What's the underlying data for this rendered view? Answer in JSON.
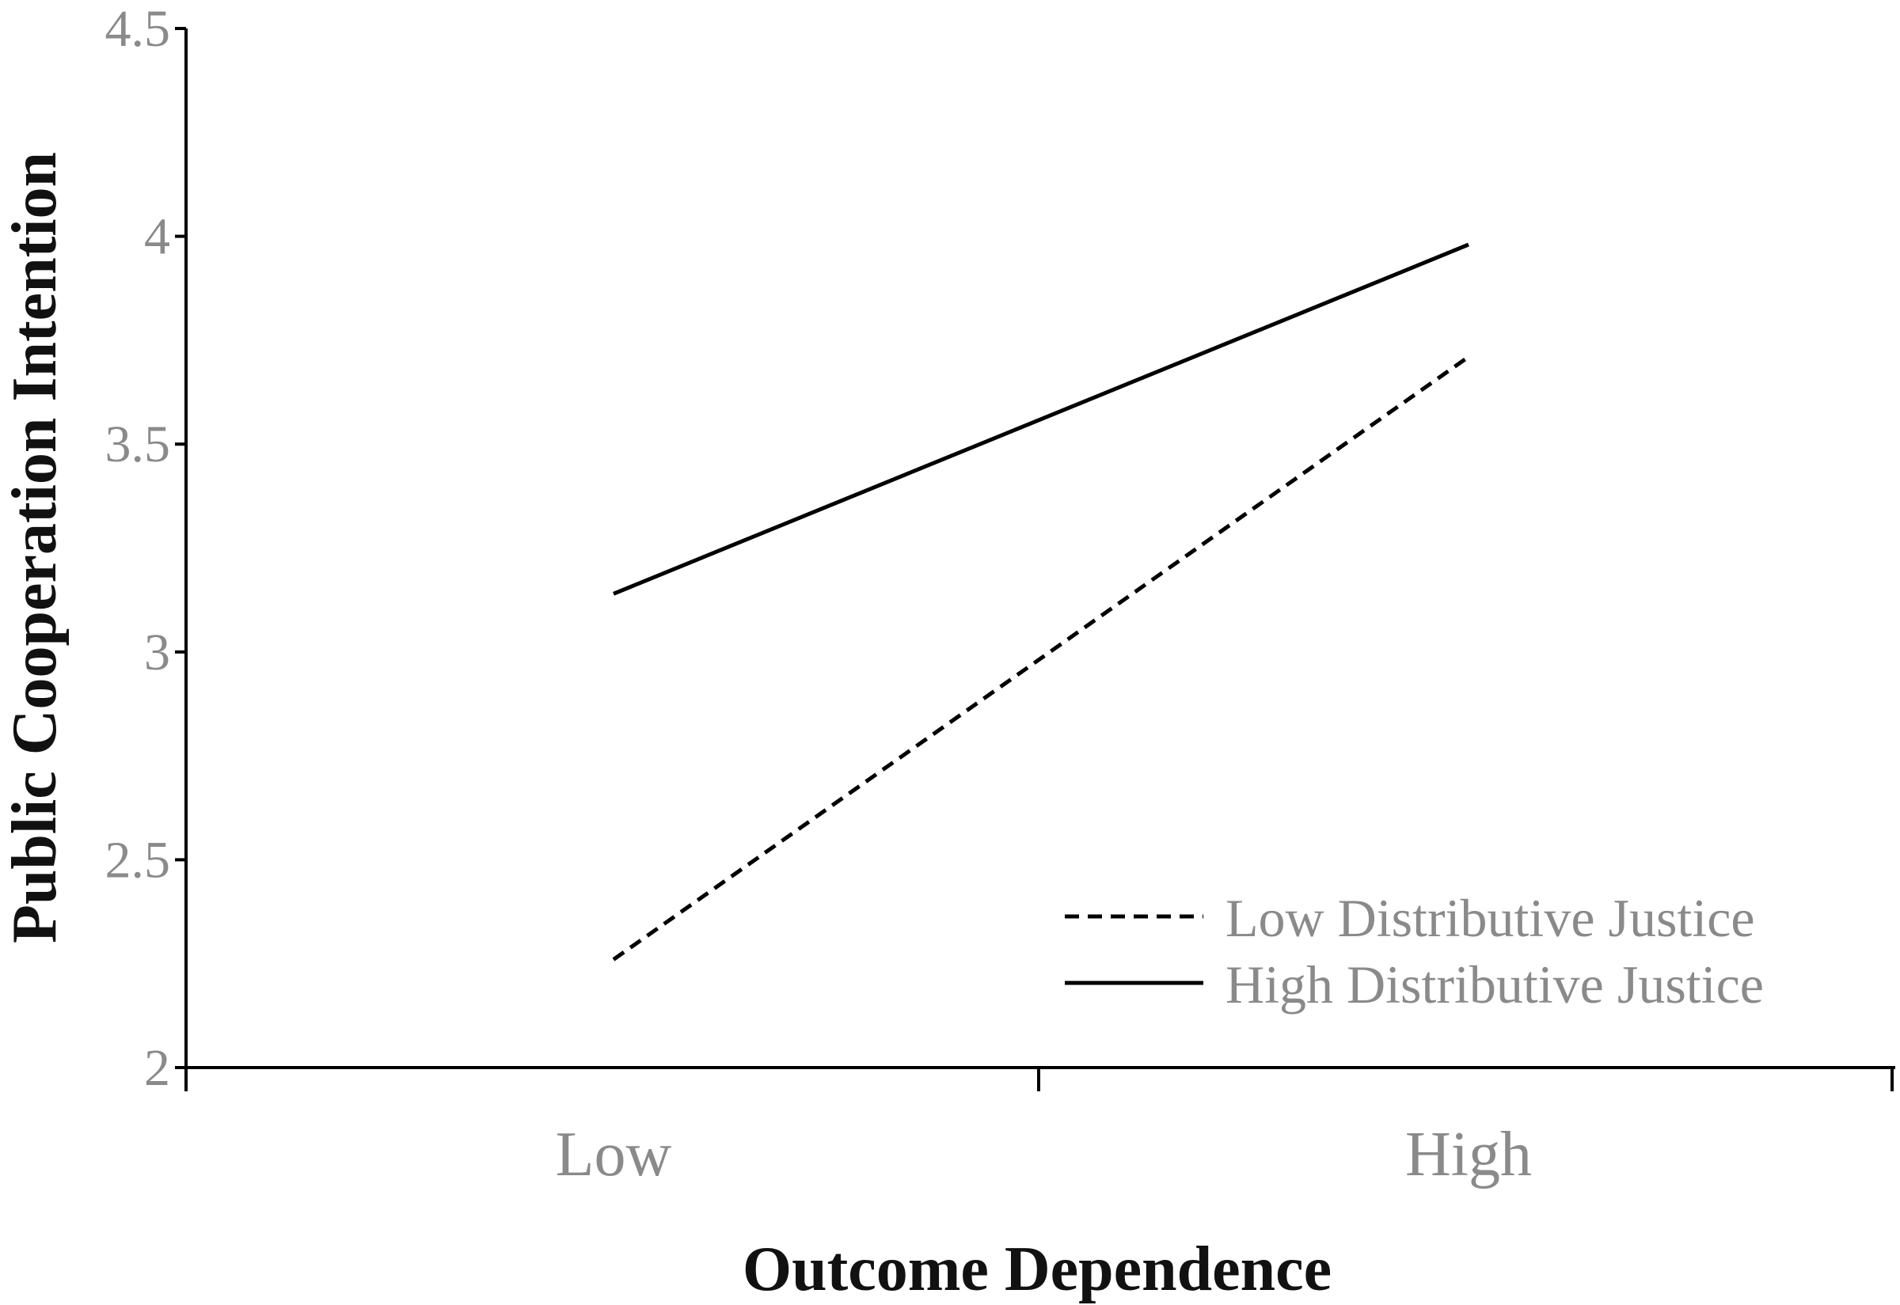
{
  "chart_data": {
    "type": "line",
    "title": "",
    "xlabel": "Outcome Dependence",
    "ylabel": "Public Cooperation Intention",
    "categories": [
      "Low",
      "High"
    ],
    "ylim": [
      2,
      4.5
    ],
    "yticks": [
      "2",
      "2.5",
      "3",
      "3.5",
      "4",
      "4.5"
    ],
    "legend_position": "bottom-right",
    "grid": false,
    "series": [
      {
        "name": "Low Distributive Justice",
        "values": [
          2.26,
          3.71
        ],
        "style": "dashed",
        "color": "#000000"
      },
      {
        "name": "High Distributive Justice",
        "values": [
          3.14,
          3.98
        ],
        "style": "solid",
        "color": "#000000"
      }
    ]
  }
}
